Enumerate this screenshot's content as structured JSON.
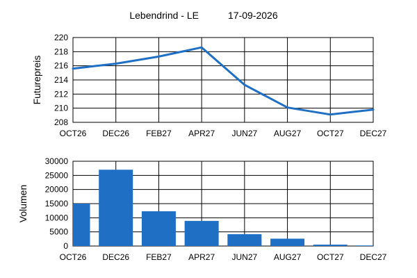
{
  "header": {
    "title": "Lebendrind - LE",
    "date": "17-09-2026"
  },
  "colors": {
    "series": "#1F6FC5",
    "grid": "#000000",
    "axis": "#000000"
  },
  "chart_data": [
    {
      "type": "line",
      "ylabel": "Futurepreis",
      "ylim": [
        208,
        220
      ],
      "yticks": [
        208,
        210,
        212,
        214,
        216,
        218,
        220
      ],
      "categories": [
        "OCT26",
        "DEC26",
        "FEB27",
        "APR27",
        "JUN27",
        "AUG27",
        "OCT27",
        "DEC27"
      ],
      "series": [
        {
          "values": [
            215.6,
            216.3,
            217.3,
            218.6,
            213.3,
            210.1,
            209.1,
            209.8
          ]
        }
      ],
      "grid": true
    },
    {
      "type": "bar",
      "ylabel": "Volumen",
      "ylim": [
        0,
        30000
      ],
      "yticks": [
        0,
        5000,
        10000,
        15000,
        20000,
        25000,
        30000
      ],
      "categories": [
        "OCT26",
        "DEC26",
        "FEB27",
        "APR27",
        "JUN27",
        "AUG27",
        "OCT27",
        "DEC27"
      ],
      "series": [
        {
          "values": [
            15000,
            27000,
            12300,
            8900,
            4200,
            2600,
            500,
            200
          ]
        }
      ],
      "grid": true
    }
  ]
}
